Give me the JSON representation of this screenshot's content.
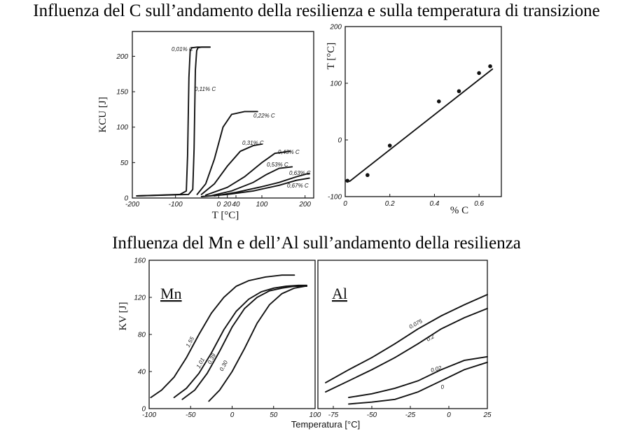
{
  "titles": {
    "top": "Influenza del C sull’andamento della resilienza e sulla temperatura di transizione",
    "middle": "Influenza del Mn e dell’Al sull’andamento della resilienza"
  },
  "chart_data": [
    {
      "id": "kcu",
      "type": "line",
      "xlabel": "T [°C]",
      "ylabel": "KCU [J]",
      "xlim": [
        -200,
        220
      ],
      "ylim": [
        0,
        235
      ],
      "xticks": [
        -200,
        -100,
        0,
        20,
        40,
        100,
        200
      ],
      "xtick_labels": [
        "-200",
        "-100",
        "0",
        "20",
        "40",
        "100",
        "200"
      ],
      "yticks": [
        0,
        50,
        100,
        150,
        200
      ],
      "ytick_labels": [
        "0",
        "50",
        "100",
        "150",
        "200"
      ],
      "series": [
        {
          "name": "0,01% C",
          "x": [
            -190,
            -90,
            -75,
            -72,
            -69,
            -66,
            -62,
            -50,
            -20
          ],
          "y": [
            3,
            5,
            10,
            60,
            170,
            208,
            212,
            213,
            213
          ]
        },
        {
          "name": "0,11% C",
          "x": [
            -190,
            -70,
            -60,
            -57,
            -54,
            -51,
            -48,
            -40,
            -20
          ],
          "y": [
            3,
            5,
            12,
            70,
            180,
            208,
            212,
            213,
            213
          ]
        },
        {
          "name": "0,22% C",
          "x": [
            -50,
            -30,
            -10,
            10,
            30,
            60,
            90
          ],
          "y": [
            5,
            20,
            55,
            100,
            118,
            122,
            122
          ]
        },
        {
          "name": "0,31% C",
          "x": [
            -40,
            -10,
            20,
            50,
            80,
            100
          ],
          "y": [
            5,
            20,
            45,
            66,
            74,
            76
          ]
        },
        {
          "name": "0,43% C",
          "x": [
            -30,
            20,
            60,
            100,
            130,
            165
          ],
          "y": [
            4,
            15,
            30,
            50,
            63,
            66
          ]
        },
        {
          "name": "0,53% C",
          "x": [
            -20,
            30,
            80,
            110,
            140,
            170
          ],
          "y": [
            3,
            10,
            22,
            33,
            42,
            44
          ]
        },
        {
          "name": "0,63% C",
          "x": [
            -10,
            40,
            100,
            140,
            180,
            210
          ],
          "y": [
            3,
            8,
            16,
            22,
            30,
            35
          ]
        },
        {
          "name": "0,67% C",
          "x": [
            -40,
            20,
            80,
            140,
            180,
            210
          ],
          "y": [
            2,
            5,
            10,
            18,
            25,
            28
          ]
        }
      ],
      "annotations": [
        "0,01% C",
        "0,11% C",
        "0,22% C",
        "0,31% C",
        "0,43% C",
        "0,53% C",
        "0,63% C",
        "0,67% C"
      ]
    },
    {
      "id": "transition",
      "type": "scatter",
      "xlabel": "% C",
      "ylabel": "T [°C]",
      "xlim": [
        0,
        0.7
      ],
      "ylim": [
        -100,
        200
      ],
      "xticks": [
        0,
        0.2,
        0.4,
        0.6
      ],
      "xtick_labels": [
        "0",
        "0.2",
        "0.4",
        "0.6"
      ],
      "yticks": [
        -100,
        0,
        100,
        200
      ],
      "ytick_labels": [
        "-100",
        "0",
        "100",
        "200"
      ],
      "points": {
        "x": [
          0.01,
          0.1,
          0.2,
          0.42,
          0.51,
          0.6,
          0.65
        ],
        "y": [
          -72,
          -62,
          -10,
          68,
          86,
          118,
          130
        ]
      },
      "fit_line": {
        "x": [
          0.02,
          0.66
        ],
        "y": [
          -73,
          125
        ]
      }
    },
    {
      "id": "mn",
      "type": "line",
      "element": "Mn",
      "ylabel": "KV [J]",
      "xlim": [
        -100,
        100
      ],
      "ylim": [
        0,
        160
      ],
      "xticks": [
        -100,
        -50,
        0,
        50,
        100
      ],
      "xtick_labels": [
        "-100",
        "-50",
        "0",
        "50",
        "100"
      ],
      "yticks": [
        0,
        40,
        80,
        120,
        160
      ],
      "ytick_labels": [
        "0",
        "40",
        "80",
        "120",
        "160"
      ],
      "series": [
        {
          "name": "1.55",
          "x": [
            -98,
            -85,
            -70,
            -55,
            -40,
            -25,
            -10,
            5,
            20,
            40,
            60,
            75
          ],
          "y": [
            12,
            20,
            34,
            55,
            80,
            103,
            120,
            132,
            138,
            142,
            144,
            144
          ]
        },
        {
          "name": "1.01",
          "x": [
            -70,
            -55,
            -40,
            -25,
            -10,
            5,
            20,
            35,
            50,
            65,
            80,
            90
          ],
          "y": [
            12,
            22,
            38,
            60,
            85,
            105,
            118,
            126,
            130,
            132,
            133,
            133
          ]
        },
        {
          "name": "0.39",
          "x": [
            -60,
            -45,
            -30,
            -15,
            0,
            15,
            30,
            45,
            60,
            75,
            90
          ],
          "y": [
            10,
            20,
            38,
            62,
            88,
            108,
            120,
            127,
            130,
            132,
            132
          ]
        },
        {
          "name": "0.30",
          "x": [
            -28,
            -15,
            0,
            15,
            30,
            45,
            60,
            75,
            88
          ],
          "y": [
            8,
            20,
            40,
            65,
            92,
            112,
            124,
            130,
            132
          ]
        }
      ],
      "annotations": [
        "1.55",
        "1.01",
        "0.39",
        "0.30"
      ]
    },
    {
      "id": "al",
      "type": "line",
      "element": "Al",
      "xlim": [
        -85,
        25
      ],
      "ylim": [
        0,
        160
      ],
      "xticks": [
        -75,
        -50,
        -25,
        0,
        25
      ],
      "xtick_labels": [
        "-75",
        "-50",
        "-25",
        "0",
        "25"
      ],
      "series": [
        {
          "name": "0.075",
          "x": [
            -80,
            -65,
            -50,
            -35,
            -20,
            -5,
            10,
            25
          ],
          "y": [
            28,
            42,
            55,
            70,
            86,
            100,
            112,
            123
          ]
        },
        {
          "name": "0.2",
          "x": [
            -80,
            -65,
            -50,
            -35,
            -20,
            -5,
            10,
            25
          ],
          "y": [
            18,
            30,
            42,
            55,
            70,
            86,
            98,
            108
          ]
        },
        {
          "name": "0.02",
          "x": [
            -65,
            -50,
            -35,
            -20,
            -5,
            10,
            25
          ],
          "y": [
            12,
            16,
            22,
            30,
            42,
            52,
            56
          ]
        },
        {
          "name": "0",
          "x": [
            -65,
            -50,
            -35,
            -20,
            -5,
            10,
            25
          ],
          "y": [
            5,
            7,
            10,
            18,
            30,
            42,
            50
          ]
        }
      ],
      "annotations": [
        "0.075",
        "0.2",
        "0.02",
        "0"
      ]
    }
  ],
  "shared_xlabel": "Temperatura [°C]"
}
